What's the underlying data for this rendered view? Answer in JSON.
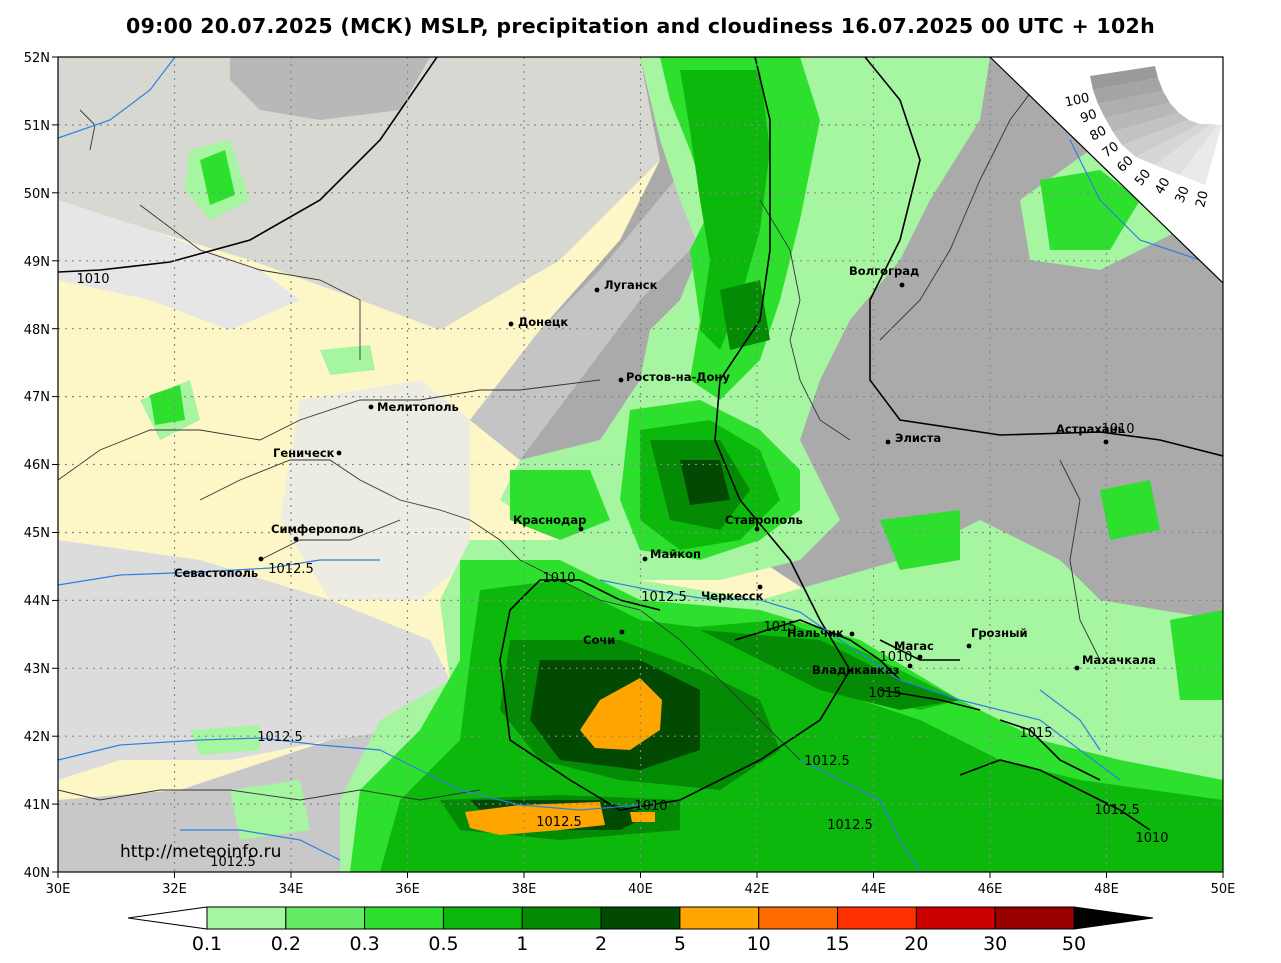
{
  "title": "09:00 20.07.2025 (МСК) MSLP, precipitation and cloudiness 16.07.2025 00 UTC + 102h",
  "url": "http://meteoinfo.ru",
  "map": {
    "lon_ticks": [
      "30E",
      "32E",
      "34E",
      "36E",
      "38E",
      "40E",
      "42E",
      "44E",
      "46E",
      "48E",
      "50E"
    ],
    "lat_ticks": [
      "52N",
      "51N",
      "50N",
      "49N",
      "48N",
      "47N",
      "46N",
      "45N",
      "44N",
      "43N",
      "42N",
      "41N",
      "40N"
    ],
    "cities": [
      {
        "name": "Луганск"
      },
      {
        "name": "Донецк"
      },
      {
        "name": "Волгоград"
      },
      {
        "name": "Ростов-на-Дону"
      },
      {
        "name": "Мелитополь"
      },
      {
        "name": "Элиста"
      },
      {
        "name": "Астрахань"
      },
      {
        "name": "Геническ"
      },
      {
        "name": "Краснодар"
      },
      {
        "name": "Ставрополь"
      },
      {
        "name": "Симферополь"
      },
      {
        "name": "Майкоп"
      },
      {
        "name": "Севастополь"
      },
      {
        "name": "Черкесск"
      },
      {
        "name": "Сочи"
      },
      {
        "name": "Нальчик"
      },
      {
        "name": "Магас"
      },
      {
        "name": "Грозный"
      },
      {
        "name": "Владикавказ"
      },
      {
        "name": "Махачкала"
      }
    ],
    "isobar_labels": [
      "1010",
      "1010",
      "1012.5",
      "1010",
      "1012.5",
      "1015",
      "1010",
      "1015",
      "1012.5",
      "1012.5",
      "1015",
      "1010",
      "1012.5",
      "1012.5",
      "1012.5",
      "1010",
      "1012.5"
    ]
  },
  "cloud_scale": {
    "labels": [
      "100",
      "90",
      "80",
      "70",
      "60",
      "50",
      "40",
      "30",
      "20"
    ]
  },
  "colorbar": {
    "labels": [
      "0.1",
      "0.2",
      "0.3",
      "0.5",
      "1",
      "2",
      "5",
      "10",
      "15",
      "20",
      "30",
      "50"
    ],
    "colors": [
      "#a6f5a0",
      "#64ea64",
      "#2ee02e",
      "#0cb80c",
      "#058a05",
      "#024a02",
      "#ffa500",
      "#ff6a00",
      "#ff3000",
      "#cc0000",
      "#990000"
    ]
  }
}
